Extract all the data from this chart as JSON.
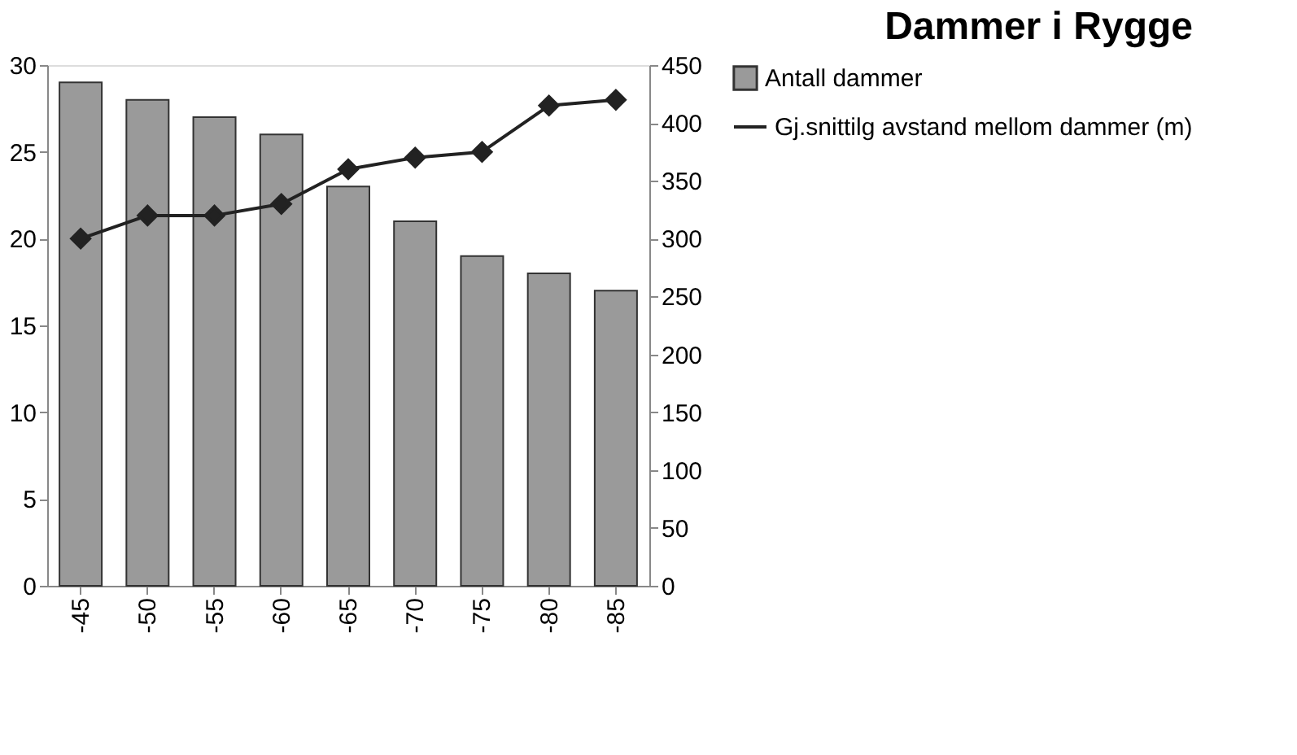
{
  "chart_data": {
    "type": "bar",
    "title": "Dammer i Rygge",
    "categories": [
      "-45",
      "-50",
      "-55",
      "-60",
      "-65",
      "-70",
      "-75",
      "-80",
      "-85"
    ],
    "series": [
      {
        "name": "Antall dammer",
        "color": "#9a9a9a",
        "values": [
          29,
          28,
          27,
          26,
          23,
          21,
          19,
          18,
          17
        ]
      },
      {
        "name": "Gj.snittilg avstand mellom dammer (m)",
        "type": "line",
        "axis": "y2",
        "color": "#222222",
        "marker": "diamond",
        "values": [
          300,
          320,
          320,
          330,
          360,
          370,
          375,
          415,
          420
        ]
      }
    ],
    "ylim": [
      0,
      30
    ],
    "yticks": [
      0,
      5,
      10,
      15,
      20,
      25,
      30
    ],
    "y2lim": [
      0,
      450
    ],
    "y2ticks": [
      0,
      50,
      100,
      150,
      200,
      250,
      300,
      350,
      400,
      450
    ],
    "grid": false,
    "legend": "right"
  }
}
